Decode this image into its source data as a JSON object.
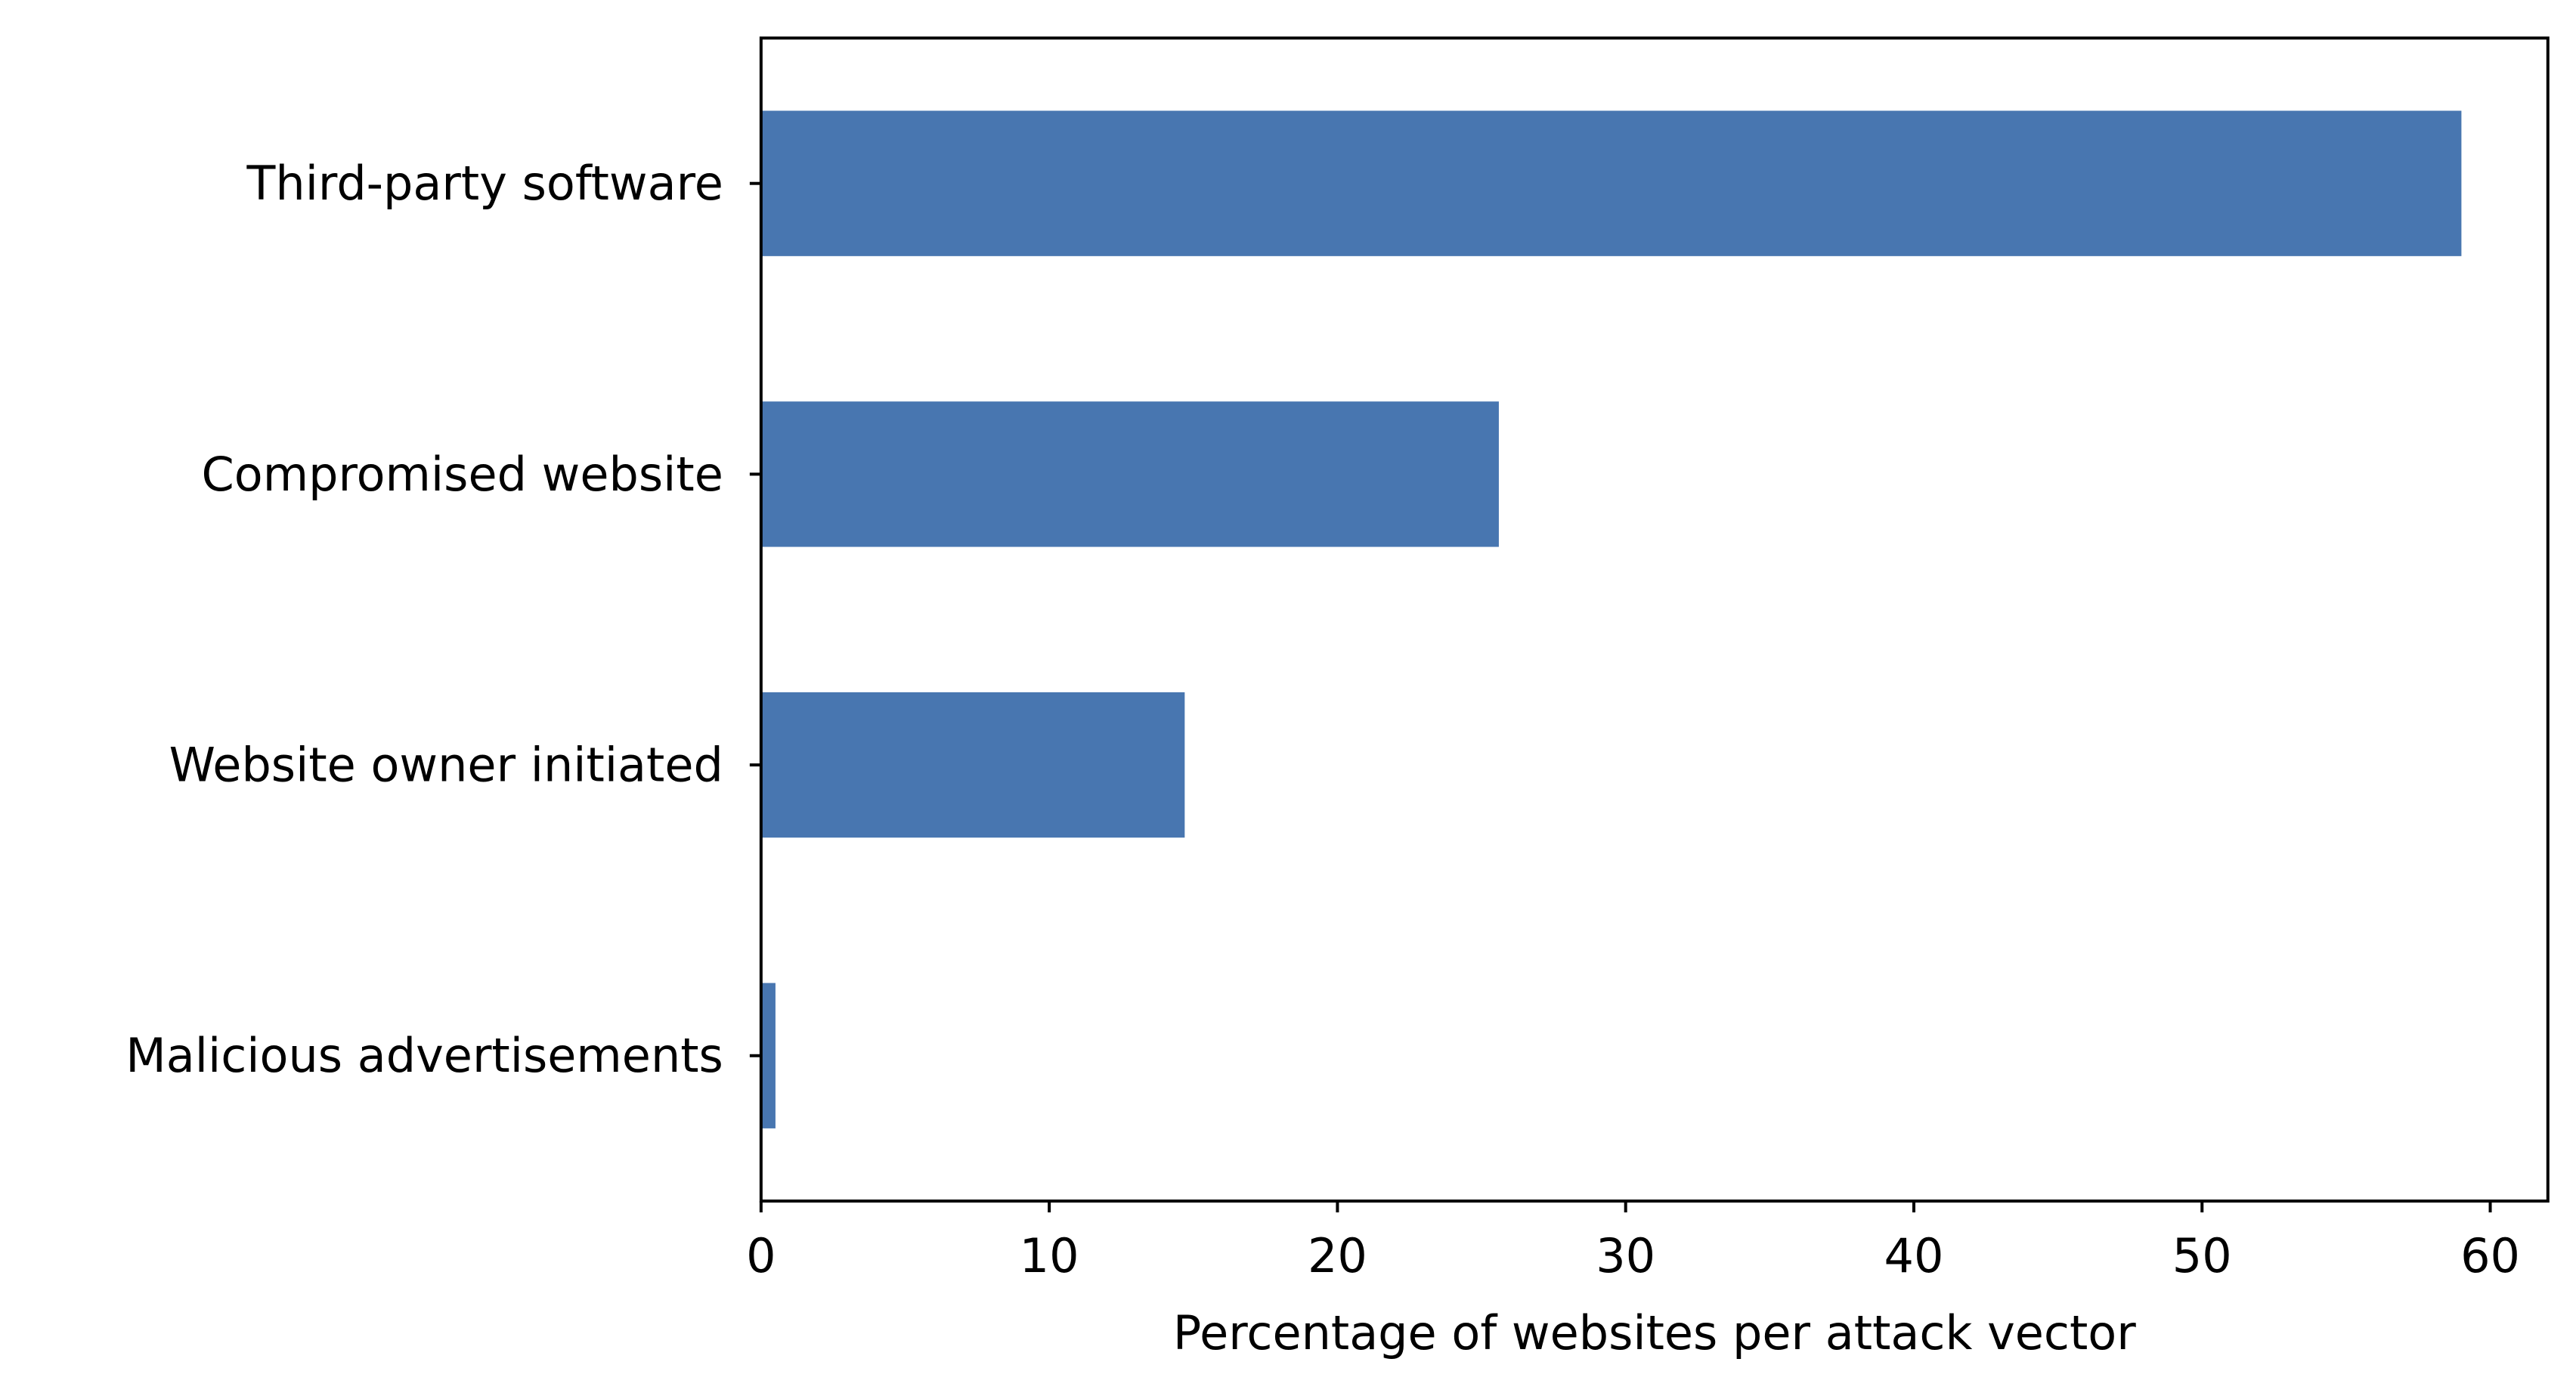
{
  "chart_data": {
    "type": "bar",
    "orientation": "horizontal",
    "title": "",
    "xlabel": "Percentage of websites per attack vector",
    "ylabel": "",
    "categories": [
      "Third-party software",
      "Compromised website",
      "Website owner initiated",
      "Malicious advertisements"
    ],
    "series": [
      {
        "values": [
          59.0,
          25.6,
          14.7,
          0.5
        ]
      }
    ],
    "xlim": [
      0,
      62
    ],
    "xticks": [
      "0",
      "10",
      "20",
      "30",
      "40",
      "50",
      "60"
    ],
    "grid": false,
    "legend": "none",
    "bar_color": "#4876b0",
    "axis_color": "#000000"
  }
}
